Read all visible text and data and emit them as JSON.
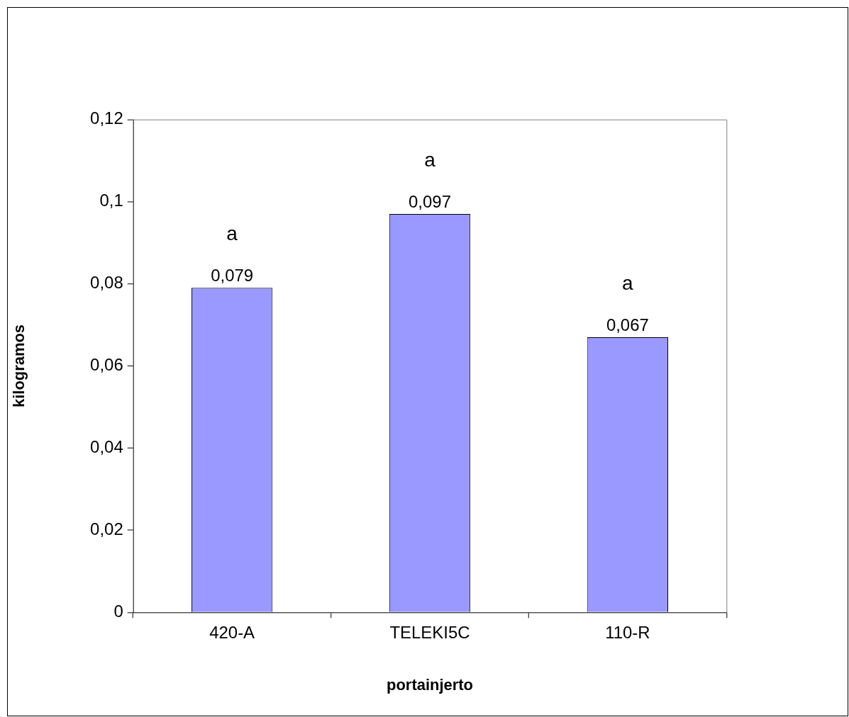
{
  "chart_data": {
    "type": "bar",
    "xlabel": "portainjerto",
    "ylabel": "kilogramos",
    "categories": [
      "420-A",
      "TELEKI5C",
      "110-R"
    ],
    "values": [
      0.079,
      0.097,
      0.067
    ],
    "value_labels": [
      "0,079",
      "0,097",
      "0,067"
    ],
    "color": "#9999ff",
    "ylim": [
      0,
      0.12
    ],
    "yticks": [
      {
        "value": 0,
        "label": "0"
      },
      {
        "value": 0.02,
        "label": "0,02"
      },
      {
        "value": 0.04,
        "label": "0,04"
      },
      {
        "value": 0.06,
        "label": "0,06"
      },
      {
        "value": 0.08,
        "label": "0,08"
      },
      {
        "value": 0.1,
        "label": "0,1"
      },
      {
        "value": 0.12,
        "label": "0,12"
      }
    ],
    "annotations": [
      "a",
      "a",
      "a"
    ],
    "grid": false,
    "legend": false
  }
}
